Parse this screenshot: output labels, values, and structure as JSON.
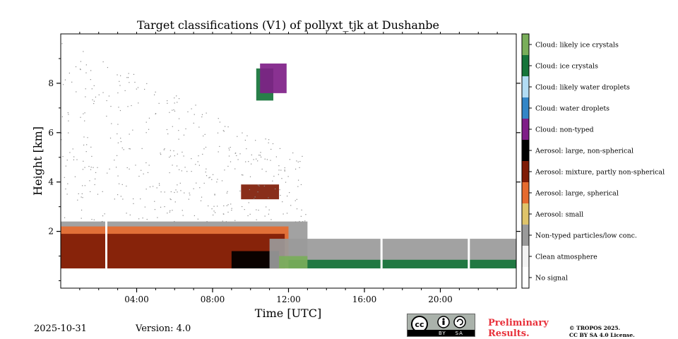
{
  "chart_data": {
    "type": "heatmap",
    "title": "Target classifications (V1) of pollyxt_tjk at Dushanbe",
    "xlabel": "Time [UTC]",
    "ylabel": "Height [km]",
    "x_ticks": [
      "04:00",
      "08:00",
      "12:00",
      "16:00",
      "20:00"
    ],
    "x_tick_hours": [
      4,
      8,
      12,
      16,
      20
    ],
    "xlim_hours": [
      0,
      24
    ],
    "y_ticks": [
      "2",
      "4",
      "6",
      "8"
    ],
    "y_tick_values": [
      2,
      4,
      6,
      8
    ],
    "ylim_km": [
      -0.3,
      10.0
    ],
    "colorbar": [
      {
        "label": "Cloud: likely ice crystals",
        "color": "#79ae5a"
      },
      {
        "label": "Cloud: ice crystals",
        "color": "#16743a"
      },
      {
        "label": "Cloud: likely water droplets",
        "color": "#b2dcf4"
      },
      {
        "label": "Cloud: water droplets",
        "color": "#3386c7"
      },
      {
        "label": "Cloud: non-typed",
        "color": "#7f1f88"
      },
      {
        "label": "Aerosol: large, non-spherical",
        "color": "#000000"
      },
      {
        "label": "Aerosol: mixture, partly non-spherical",
        "color": "#7f1c06"
      },
      {
        "label": "Aerosol: large, spherical",
        "color": "#e66b2f"
      },
      {
        "label": "Aerosol: small",
        "color": "#dfc46a"
      },
      {
        "label": "Non-typed particles/low conc.",
        "color": "#9a9a9a"
      },
      {
        "label": "Clean atmosphere",
        "color": "#f3f3f3"
      },
      {
        "label": "No signal",
        "color": "#ffffff"
      }
    ],
    "regions": [
      {
        "class": "Non-typed particles/low conc.",
        "t_start": 0,
        "t_end": 13,
        "h_bottom": 0.5,
        "h_top": 2.4
      },
      {
        "class": "Aerosol: large, spherical",
        "t_start": 0,
        "t_end": 12,
        "h_bottom": 0.5,
        "h_top": 2.2
      },
      {
        "class": "Aerosol: mixture, partly non-spherical",
        "t_start": 0,
        "t_end": 11.8,
        "h_bottom": 0.5,
        "h_top": 1.9
      },
      {
        "class": "Aerosol: large, non-spherical",
        "t_start": 9,
        "t_end": 11.5,
        "h_bottom": 0.5,
        "h_top": 1.2
      },
      {
        "class": "Non-typed particles/low conc.",
        "t_start": 11,
        "t_end": 24,
        "h_bottom": 0.5,
        "h_top": 1.7
      },
      {
        "class": "Cloud: ice crystals",
        "t_start": 12,
        "t_end": 24,
        "h_bottom": 0.5,
        "h_top": 0.85
      },
      {
        "class": "Cloud: likely ice crystals",
        "t_start": 11.5,
        "t_end": 13,
        "h_bottom": 0.5,
        "h_top": 1.0
      },
      {
        "class": "Cloud: ice crystals",
        "t_start": 10.3,
        "t_end": 11.2,
        "h_bottom": 7.3,
        "h_top": 8.6
      },
      {
        "class": "Cloud: non-typed",
        "t_start": 10.5,
        "t_end": 11.9,
        "h_bottom": 7.6,
        "h_top": 8.8
      },
      {
        "class": "Aerosol: mixture, partly non-spherical",
        "t_start": 9.5,
        "t_end": 11.5,
        "h_bottom": 3.3,
        "h_top": 3.9
      }
    ],
    "no_signal_gaps_hours": [
      2.4,
      16.9,
      21.5
    ]
  },
  "footer": {
    "date": "2025-10-31",
    "version": "Version: 4.0",
    "cc_label": "BY    SA",
    "preliminary_line1": "Preliminary",
    "preliminary_line2": "Results.",
    "copyright_line1": "© TROPOS 2025.",
    "copyright_line2": "CC BY SA 4.0 License."
  }
}
